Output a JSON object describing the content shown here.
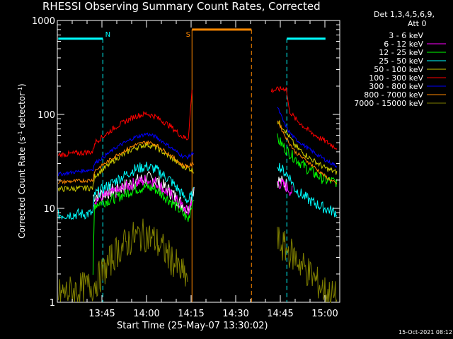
{
  "chart_data": {
    "type": "line",
    "title": "RHESSI Observing Summary Count Rates, Corrected",
    "xlabel": "Start Time (25-May-07 13:30:02)",
    "ylabel_main": "Corrected Count Rate (s",
    "ylabel_sup1": "-1",
    "ylabel_mid": " detector",
    "ylabel_sup2": "-1",
    "ylabel_end": ")",
    "yscale": "log",
    "xlim": [
      0,
      95
    ],
    "ylim": [
      1,
      1000
    ],
    "xticks": [
      {
        "x": 15,
        "label": "13:45"
      },
      {
        "x": 30,
        "label": "14:00"
      },
      {
        "x": 45,
        "label": "14:15"
      },
      {
        "x": 60,
        "label": "14:30"
      },
      {
        "x": 75,
        "label": "14:45"
      },
      {
        "x": 90,
        "label": "15:00"
      }
    ],
    "yticks": [
      {
        "y": 1,
        "label": "1"
      },
      {
        "y": 10,
        "label": "10"
      },
      {
        "y": 100,
        "label": "100"
      },
      {
        "y": 1000,
        "label": "1000"
      }
    ],
    "legend_title_1": "Det 1,3,4,5,6,9,",
    "legend_title_2": "Att 0",
    "legend_position": "right",
    "timestamp": "15-Oct-2021 08:12",
    "annotations": [
      {
        "text": "N",
        "x": 17,
        "y": 720,
        "color": "#00ffff"
      },
      {
        "text": "S",
        "x": 44,
        "y": 720,
        "color": "#ff8800"
      }
    ],
    "flags": [
      {
        "type": "night",
        "color": "#00ffff",
        "segments": [
          [
            0.3,
            15.3
          ],
          [
            77.2,
            90.2
          ]
        ],
        "bar_y": 640,
        "dash": [
          15.3,
          77.2
        ]
      },
      {
        "type": "saa",
        "color": "#ff8800",
        "segments": [
          [
            45.3,
            65.3
          ]
        ],
        "bar_y": 800,
        "dash": [
          65.3
        ],
        "solid": [
          45.3
        ]
      }
    ],
    "series": [
      {
        "name": "3 - 6 keV",
        "color": "#ffffff",
        "draw_color": "#000000",
        "profile": [
          [
            12,
            13.5
          ],
          [
            14.5,
            14
          ],
          [
            20,
            16
          ],
          [
            26,
            19
          ],
          [
            30,
            21
          ],
          [
            33,
            20
          ],
          [
            38,
            15
          ],
          [
            42,
            11
          ],
          [
            44,
            9.5
          ],
          [
            46,
            17
          ]
        ],
        "profile2": [
          [
            74,
            20
          ],
          [
            77,
            18
          ]
        ],
        "noise": 0.08
      },
      {
        "name": "6 - 12 keV",
        "color": "#ff00ff",
        "profile": [
          [
            12,
            12
          ],
          [
            14.5,
            13
          ],
          [
            20,
            15
          ],
          [
            26,
            18.5
          ],
          [
            30,
            20
          ],
          [
            33,
            19
          ],
          [
            38,
            14
          ],
          [
            42,
            10.5
          ],
          [
            44,
            9
          ],
          [
            46,
            16
          ]
        ],
        "profile2": [
          [
            74,
            19
          ],
          [
            77,
            17
          ],
          [
            79,
            15
          ]
        ],
        "noise": 0.07
      },
      {
        "name": "12 - 25 keV",
        "color": "#00ff00",
        "profile": [
          [
            12,
            1.8
          ],
          [
            12.5,
            11
          ],
          [
            14.5,
            11.5
          ],
          [
            20,
            13
          ],
          [
            26,
            16
          ],
          [
            30,
            17
          ],
          [
            33,
            16
          ],
          [
            38,
            12
          ],
          [
            42,
            9
          ],
          [
            44,
            7.5
          ],
          [
            46,
            14
          ]
        ],
        "profile2": [
          [
            74,
            55
          ],
          [
            77,
            42
          ],
          [
            80,
            34
          ],
          [
            85,
            25
          ],
          [
            90,
            20
          ],
          [
            94,
            19
          ]
        ],
        "noise": 0.06
      },
      {
        "name": "25 - 50 keV",
        "color": "#00ffff",
        "profile": [
          [
            0.3,
            8.5
          ],
          [
            12,
            8.8
          ],
          [
            12.5,
            14
          ],
          [
            20,
            20
          ],
          [
            26,
            26
          ],
          [
            30,
            28
          ],
          [
            33,
            26
          ],
          [
            38,
            20
          ],
          [
            42,
            14
          ],
          [
            44,
            12
          ],
          [
            46,
            15
          ]
        ],
        "profile2": [
          [
            74,
            30
          ],
          [
            76,
            25
          ],
          [
            78,
            22
          ],
          [
            80,
            16
          ],
          [
            85,
            12
          ],
          [
            90,
            10
          ],
          [
            94,
            9
          ]
        ],
        "noise": 0.06
      },
      {
        "name": "50 - 100 keV",
        "color": "#cccc00",
        "profile": [
          [
            0.3,
            16
          ],
          [
            12,
            16.5
          ],
          [
            12.5,
            22
          ],
          [
            20,
            34
          ],
          [
            26,
            44
          ],
          [
            30,
            48
          ],
          [
            33,
            45
          ],
          [
            38,
            35
          ],
          [
            42,
            28
          ],
          [
            44,
            27
          ],
          [
            46,
            25
          ]
        ],
        "profile2": [
          [
            74,
            85
          ],
          [
            76,
            72
          ],
          [
            78,
            58
          ],
          [
            80,
            46
          ],
          [
            85,
            34
          ],
          [
            90,
            27
          ],
          [
            94,
            24
          ]
        ],
        "noise": 0.03
      },
      {
        "name": "100 - 300 keV",
        "color": "#ff0000",
        "profile": [
          [
            0.3,
            37
          ],
          [
            12,
            40
          ],
          [
            12.5,
            50
          ],
          [
            20,
            75
          ],
          [
            26,
            95
          ],
          [
            30,
            102
          ],
          [
            33,
            95
          ],
          [
            38,
            75
          ],
          [
            42,
            58
          ],
          [
            44,
            55
          ],
          [
            45.3,
            180
          ]
        ],
        "profile2": [
          [
            72,
            180
          ],
          [
            77,
            190
          ],
          [
            78,
            110
          ],
          [
            80,
            90
          ],
          [
            85,
            65
          ],
          [
            90,
            52
          ],
          [
            94,
            44
          ]
        ],
        "noise": 0.03
      },
      {
        "name": "300 - 800 keV",
        "color": "#0000ff",
        "profile": [
          [
            0.3,
            23
          ],
          [
            12,
            26
          ],
          [
            12.5,
            30
          ],
          [
            20,
            45
          ],
          [
            26,
            57
          ],
          [
            30,
            62
          ],
          [
            33,
            58
          ],
          [
            38,
            45
          ],
          [
            42,
            36
          ],
          [
            44,
            35
          ],
          [
            46,
            40
          ]
        ],
        "profile2": [
          [
            74,
            120
          ],
          [
            76,
            85
          ],
          [
            78,
            65
          ],
          [
            80,
            55
          ],
          [
            85,
            42
          ],
          [
            90,
            33
          ],
          [
            94,
            28
          ]
        ],
        "noise": 0.02
      },
      {
        "name": "800 - 7000 keV",
        "color": "#ff8800",
        "profile": [
          [
            0.3,
            19
          ],
          [
            12,
            20
          ],
          [
            12.5,
            25
          ],
          [
            20,
            37
          ],
          [
            26,
            47
          ],
          [
            30,
            51
          ],
          [
            33,
            48
          ],
          [
            38,
            37
          ],
          [
            42,
            29
          ],
          [
            44,
            28
          ],
          [
            46,
            30
          ]
        ],
        "profile2": [
          [
            74,
            88
          ],
          [
            76,
            64
          ],
          [
            78,
            50
          ],
          [
            80,
            40
          ],
          [
            85,
            30
          ],
          [
            90,
            22
          ],
          [
            94,
            18
          ]
        ],
        "noise": 0.02
      },
      {
        "name": "7000 - 15000 keV",
        "color": "#808000",
        "profile": [
          [
            0.3,
            1.2
          ],
          [
            12,
            1.5
          ],
          [
            15,
            2
          ],
          [
            20,
            3.5
          ],
          [
            26,
            5
          ],
          [
            30,
            5.2
          ],
          [
            33,
            4.5
          ],
          [
            38,
            3
          ],
          [
            42,
            2
          ],
          [
            44,
            1.8
          ]
        ],
        "profile2": [
          [
            74,
            4.5
          ],
          [
            80,
            3
          ],
          [
            85,
            2
          ],
          [
            90,
            1.3
          ],
          [
            94,
            1.1
          ]
        ],
        "noise": 0.18
      }
    ]
  }
}
